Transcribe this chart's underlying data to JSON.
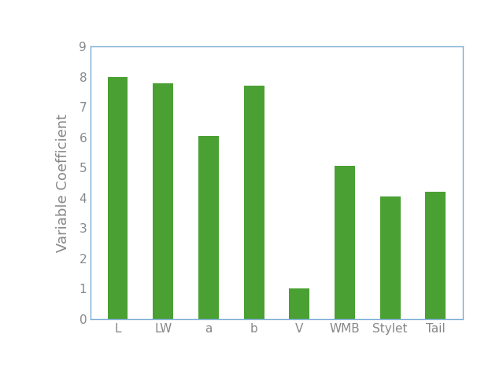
{
  "categories": [
    "L",
    "LW",
    "a",
    "b",
    "V",
    "WMB",
    "Stylet",
    "Tail"
  ],
  "values": [
    8.0,
    7.8,
    6.05,
    7.7,
    1.0,
    5.05,
    4.05,
    4.2
  ],
  "bar_color": "#4aA033",
  "ylabel": "Variable Coefficient",
  "ylim": [
    0,
    9
  ],
  "yticks": [
    0,
    1,
    2,
    3,
    4,
    5,
    6,
    7,
    8,
    9
  ],
  "ylabel_fontsize": 13,
  "tick_fontsize": 11,
  "bar_width": 0.45,
  "background_color": "#ffffff",
  "spine_color": "#7aadd4",
  "tick_color": "#888888"
}
